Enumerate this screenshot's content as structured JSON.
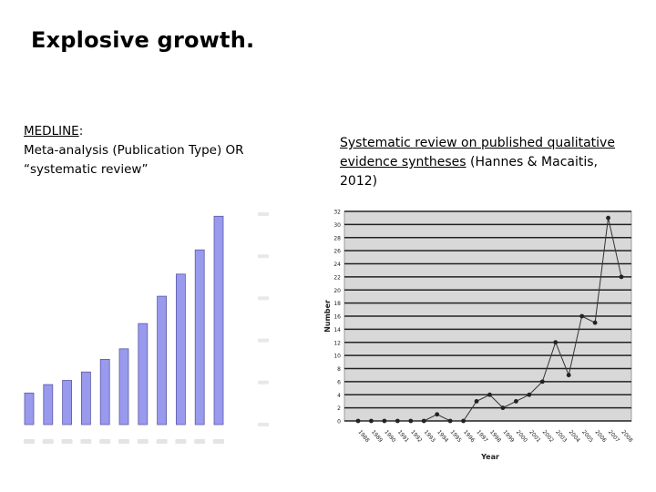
{
  "slide": {
    "title": "Explosive growth."
  },
  "left": {
    "heading": "MEDLINE",
    "heading_suffix": ":",
    "line1": "Meta-analysis (Publication Type) OR",
    "line2": "“systematic review”"
  },
  "right": {
    "link_text_1": "Systematic review on published qualitative",
    "link_text_2": "evidence syntheses",
    "citation": " (Hannes & Macaitis,",
    "citation_2": "2012)"
  },
  "chart_data": [
    {
      "type": "bar",
      "note": "tick labels are blurred/illegible in the screenshot",
      "bar_color": "#9999ee",
      "values": [
        0.3,
        0.38,
        0.42,
        0.5,
        0.62,
        0.72,
        0.96,
        1.22,
        1.43,
        1.66,
        1.98
      ],
      "ylim": [
        0,
        2.0
      ]
    },
    {
      "type": "line",
      "ylabel": "Number",
      "xlabel": "Year",
      "x": [
        "1988",
        "1989",
        "1990",
        "1991",
        "1992",
        "1993",
        "1994",
        "1995",
        "1996",
        "1997",
        "1998",
        "1999",
        "2000",
        "2001",
        "2002",
        "2003",
        "2004",
        "2005",
        "2006",
        "2007",
        "2008"
      ],
      "y": [
        0,
        0,
        0,
        0,
        0,
        0,
        1,
        0,
        0,
        3,
        4,
        2,
        3,
        4,
        6,
        12,
        7,
        16,
        15,
        31,
        22
      ],
      "yticks": [
        "0",
        "2",
        "4",
        "6",
        "8",
        "10",
        "12",
        "14",
        "16",
        "18",
        "20",
        "22",
        "24",
        "26",
        "28",
        "30",
        "32"
      ],
      "ylim": [
        0,
        32
      ],
      "grid": true,
      "plot_bg": "#d8d8d8",
      "line_color": "#333333"
    }
  ]
}
